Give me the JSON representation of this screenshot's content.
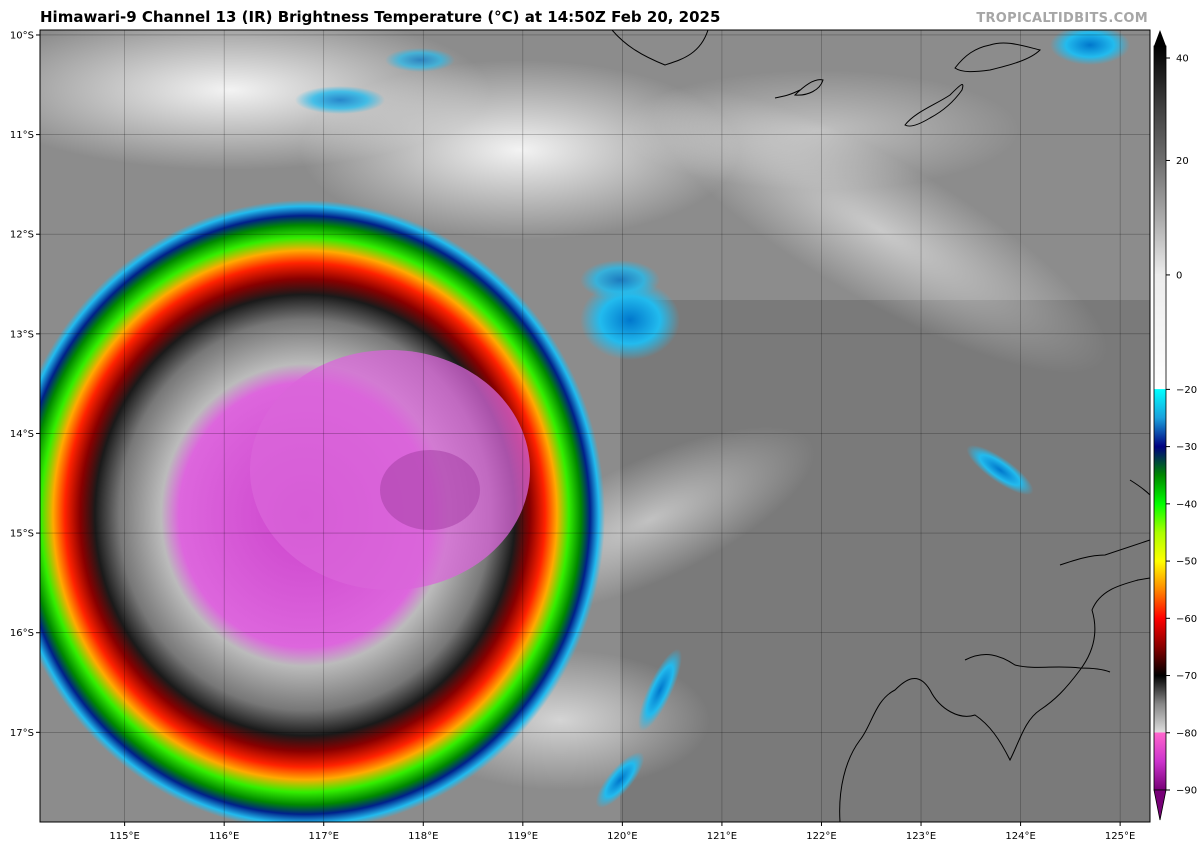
{
  "header": {
    "title": "Himawari-9 Channel 13 (IR) Brightness Temperature (°C) at 14:50Z Feb 20, 2025",
    "credit": "TROPICALTIDBITS.COM"
  },
  "map": {
    "lat_range": [
      -17.9,
      -9.95
    ],
    "lon_range": [
      114.15,
      125.3
    ],
    "lat_ticks": [
      "10°S",
      "11°S",
      "12°S",
      "13°S",
      "14°S",
      "15°S",
      "16°S",
      "17°S"
    ],
    "lon_ticks": [
      "115°E",
      "116°E",
      "117°E",
      "118°E",
      "119°E",
      "120°E",
      "121°E",
      "122°E",
      "123°E",
      "124°E",
      "125°E"
    ],
    "storm_center": {
      "lat": -14.6,
      "lon": 118.0
    }
  },
  "colorbar": {
    "range": [
      -90,
      40
    ],
    "tick_labels": [
      "40",
      "20",
      "0",
      "−20",
      "−30",
      "−40",
      "−50",
      "−60",
      "−70",
      "−80",
      "−90"
    ],
    "tick_values": [
      40,
      20,
      0,
      -20,
      -30,
      -40,
      -50,
      -60,
      -70,
      -80,
      -90
    ],
    "stops": [
      {
        "v": 40,
        "c": "#000000"
      },
      {
        "v": 30,
        "c": "#3c3c3c"
      },
      {
        "v": 20,
        "c": "#6e6e6e"
      },
      {
        "v": 10,
        "c": "#aaaaaa"
      },
      {
        "v": 0,
        "c": "#ececec"
      },
      {
        "v": -19.9,
        "c": "#ffffff"
      },
      {
        "v": -20,
        "c": "#00ffff"
      },
      {
        "v": -25,
        "c": "#1aa0dc"
      },
      {
        "v": -30,
        "c": "#000080"
      },
      {
        "v": -35,
        "c": "#008800"
      },
      {
        "v": -40,
        "c": "#00ff00"
      },
      {
        "v": -45,
        "c": "#aaff00"
      },
      {
        "v": -50,
        "c": "#ffff00"
      },
      {
        "v": -55,
        "c": "#ff8800"
      },
      {
        "v": -60,
        "c": "#ff0000"
      },
      {
        "v": -65,
        "c": "#880000"
      },
      {
        "v": -70,
        "c": "#000000"
      },
      {
        "v": -75,
        "c": "#888888"
      },
      {
        "v": -79.9,
        "c": "#dddddd"
      },
      {
        "v": -80,
        "c": "#ff66cc"
      },
      {
        "v": -85,
        "c": "#cc33cc"
      },
      {
        "v": -90,
        "c": "#770077"
      }
    ]
  }
}
